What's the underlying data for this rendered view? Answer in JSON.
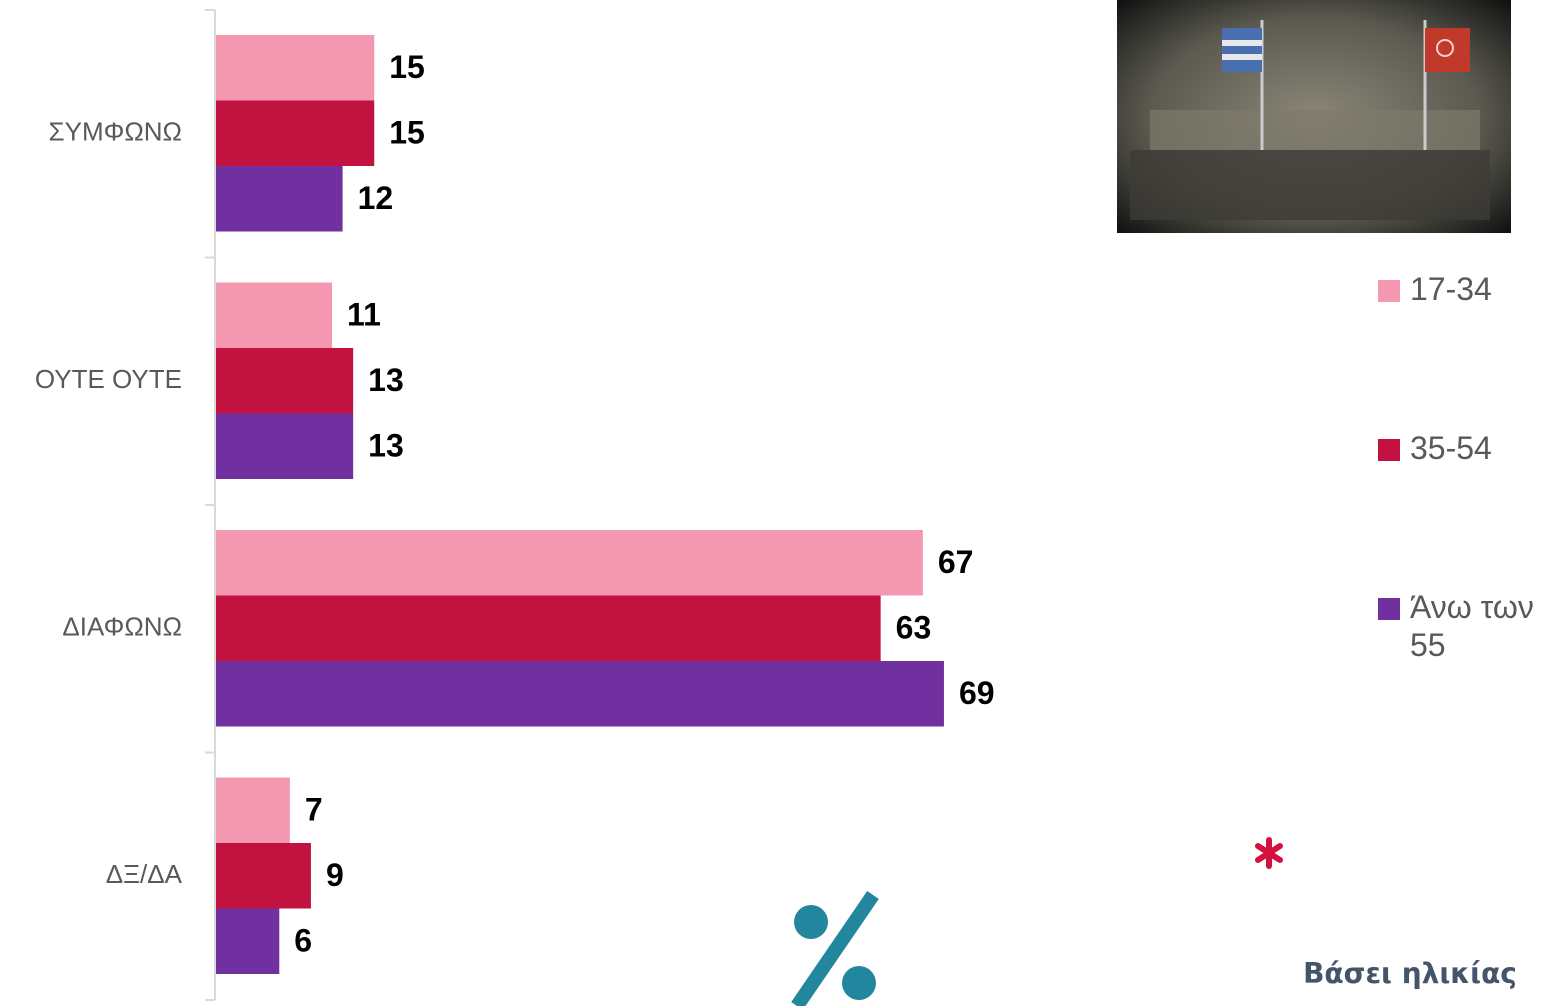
{
  "chart_data": {
    "type": "barh",
    "categories": [
      "ΣΥΜΦΩΝΩ",
      "ΟΥΤΕ ΟΥΤΕ",
      "ΔΙΑΦΩΝΩ",
      "ΔΞ/ΔΑ"
    ],
    "series": [
      {
        "name": "17-34",
        "color": "#f497b0",
        "values": [
          15,
          11,
          67,
          7
        ]
      },
      {
        "name": "35-54",
        "color": "#c2123f",
        "values": [
          15,
          13,
          63,
          9
        ]
      },
      {
        "name": "Άνω των 55",
        "color": "#7030a0",
        "values": [
          12,
          13,
          69,
          6
        ]
      }
    ],
    "note": "Βάσει ηλικίας"
  }
}
